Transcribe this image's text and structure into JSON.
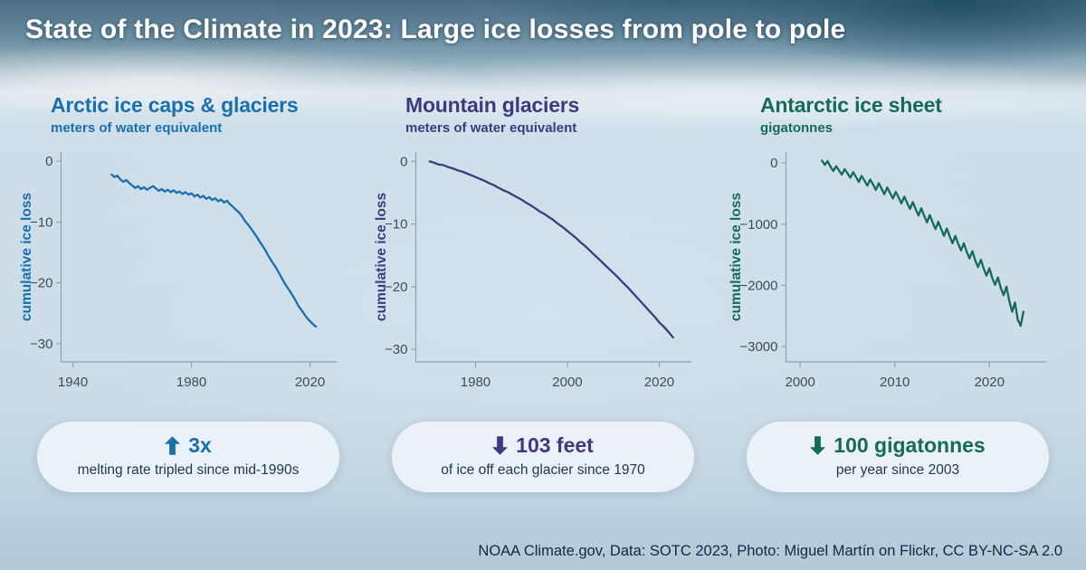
{
  "title": "State of the Climate in 2023: Large ice losses from pole to pole",
  "footer": "NOAA Climate.gov, Data: SOTC 2023, Photo: Miguel Martín on Flickr, CC BY-NC-SA 2.0",
  "panels": [
    {
      "heading": "Arctic ice caps & glaciers",
      "subheading": "meters of water equivalent",
      "accent": "#1a6fae",
      "stat": {
        "direction": "up",
        "value": "3x",
        "caption": "melting rate tripled since mid-1990s"
      }
    },
    {
      "heading": "Mountain glaciers",
      "subheading": "meters of water equivalent",
      "accent": "#3e3a7e",
      "stat": {
        "direction": "down",
        "value": "103 feet",
        "caption": "of ice off each glacier since 1970"
      }
    },
    {
      "heading": "Antarctic ice sheet",
      "subheading": "gigatonnes",
      "accent": "#166a58",
      "stat": {
        "direction": "down",
        "value": "100 gigatonnes",
        "caption": "per year since 2003"
      }
    }
  ],
  "chart_data": [
    {
      "type": "line",
      "title": "Arctic ice caps & glaciers",
      "units": "meters of water equivalent",
      "ylabel": "cumulative ice loss",
      "legend": "none",
      "grid": false,
      "x_domain": [
        1936,
        2029
      ],
      "y_domain": [
        1.5,
        -33
      ],
      "x_ticks": [
        1940,
        1980,
        2020
      ],
      "y_ticks": [
        0,
        -10,
        -20,
        -30
      ],
      "x": [
        1953,
        1954,
        1955,
        1956,
        1957,
        1958,
        1959,
        1960,
        1961,
        1962,
        1963,
        1964,
        1965,
        1966,
        1967,
        1968,
        1969,
        1970,
        1971,
        1972,
        1973,
        1974,
        1975,
        1976,
        1977,
        1978,
        1979,
        1980,
        1981,
        1982,
        1983,
        1984,
        1985,
        1986,
        1987,
        1988,
        1989,
        1990,
        1991,
        1992,
        1993,
        1994,
        1995,
        1996,
        1997,
        1998,
        1999,
        2000,
        2001,
        2002,
        2003,
        2004,
        2005,
        2006,
        2007,
        2008,
        2009,
        2010,
        2011,
        2012,
        2013,
        2014,
        2015,
        2016,
        2017,
        2018,
        2019,
        2020,
        2021,
        2022
      ],
      "y": [
        -2.2,
        -2.6,
        -2.4,
        -3.0,
        -3.4,
        -3.1,
        -3.6,
        -4.0,
        -4.4,
        -4.1,
        -4.6,
        -4.3,
        -4.7,
        -4.4,
        -4.1,
        -4.5,
        -4.9,
        -4.6,
        -5.0,
        -4.7,
        -5.1,
        -4.8,
        -5.2,
        -5.0,
        -5.4,
        -5.1,
        -5.5,
        -5.3,
        -5.8,
        -5.5,
        -6.0,
        -5.7,
        -6.2,
        -5.9,
        -6.4,
        -6.1,
        -6.6,
        -6.3,
        -6.8,
        -6.5,
        -7.1,
        -7.5,
        -8.0,
        -8.4,
        -9.0,
        -9.8,
        -10.4,
        -11.0,
        -11.7,
        -12.4,
        -13.2,
        -13.9,
        -14.7,
        -15.6,
        -16.4,
        -17.1,
        -17.9,
        -18.8,
        -19.7,
        -20.5,
        -21.2,
        -22.0,
        -22.8,
        -23.7,
        -24.4,
        -25.1,
        -25.8,
        -26.3,
        -26.8,
        -27.2
      ]
    },
    {
      "type": "line",
      "title": "Mountain glaciers",
      "units": "meters of water equivalent",
      "ylabel": "cumulative ice loss",
      "legend": "none",
      "grid": false,
      "x_domain": [
        1967,
        2027
      ],
      "y_domain": [
        1.5,
        -32
      ],
      "x_ticks": [
        1980,
        2000,
        2020
      ],
      "y_ticks": [
        0,
        -10,
        -20,
        -30
      ],
      "x": [
        1970,
        1971,
        1972,
        1973,
        1974,
        1975,
        1976,
        1977,
        1978,
        1979,
        1980,
        1981,
        1982,
        1983,
        1984,
        1985,
        1986,
        1987,
        1988,
        1989,
        1990,
        1991,
        1992,
        1993,
        1994,
        1995,
        1996,
        1997,
        1998,
        1999,
        2000,
        2001,
        2002,
        2003,
        2004,
        2005,
        2006,
        2007,
        2008,
        2009,
        2010,
        2011,
        2012,
        2013,
        2014,
        2015,
        2016,
        2017,
        2018,
        2019,
        2020,
        2021,
        2022,
        2023
      ],
      "y": [
        0,
        -0.2,
        -0.5,
        -0.6,
        -0.9,
        -1.1,
        -1.4,
        -1.6,
        -1.9,
        -2.2,
        -2.5,
        -2.8,
        -3.1,
        -3.5,
        -3.8,
        -4.2,
        -4.6,
        -4.9,
        -5.3,
        -5.7,
        -6.1,
        -6.6,
        -7.0,
        -7.5,
        -8.0,
        -8.4,
        -8.9,
        -9.4,
        -10.0,
        -10.5,
        -11.1,
        -11.7,
        -12.3,
        -13.0,
        -13.6,
        -14.3,
        -15.0,
        -15.7,
        -16.4,
        -17.1,
        -17.8,
        -18.5,
        -19.3,
        -20.0,
        -20.8,
        -21.6,
        -22.4,
        -23.2,
        -24.0,
        -24.8,
        -25.7,
        -26.4,
        -27.2,
        -28.1
      ]
    },
    {
      "type": "line",
      "title": "Antarctic ice sheet",
      "units": "gigatonnes",
      "ylabel": "cumulative ice loss",
      "legend": "none",
      "grid": false,
      "x_domain": [
        1998.5,
        2026
      ],
      "y_domain": [
        180,
        -3250
      ],
      "x_ticks": [
        2000,
        2010,
        2020
      ],
      "y_ticks": [
        0,
        -1000,
        -2000,
        -3000
      ],
      "x": [
        2002.3,
        2002.6,
        2002.9,
        2003.2,
        2003.5,
        2003.8,
        2004.1,
        2004.4,
        2004.7,
        2005,
        2005.3,
        2005.6,
        2005.9,
        2006.2,
        2006.5,
        2006.8,
        2007.1,
        2007.4,
        2007.7,
        2008,
        2008.3,
        2008.6,
        2008.9,
        2009.2,
        2009.5,
        2009.8,
        2010.1,
        2010.4,
        2010.7,
        2011,
        2011.3,
        2011.6,
        2011.9,
        2012.2,
        2012.5,
        2012.8,
        2013.1,
        2013.4,
        2013.7,
        2014,
        2014.3,
        2014.6,
        2014.9,
        2015.2,
        2015.5,
        2015.8,
        2016.1,
        2016.4,
        2016.7,
        2017,
        2017.3,
        2017.6,
        2017.9,
        2018.2,
        2018.5,
        2018.8,
        2019.1,
        2019.4,
        2019.7,
        2020,
        2020.3,
        2020.6,
        2020.9,
        2021.2,
        2021.5,
        2021.8,
        2022.1,
        2022.4,
        2022.7,
        2023,
        2023.3,
        2023.6
      ],
      "y": [
        40,
        -30,
        30,
        -60,
        -130,
        -50,
        -120,
        -190,
        -100,
        -170,
        -240,
        -150,
        -230,
        -310,
        -210,
        -290,
        -370,
        -270,
        -350,
        -440,
        -330,
        -420,
        -510,
        -400,
        -490,
        -580,
        -470,
        -560,
        -660,
        -550,
        -650,
        -750,
        -640,
        -750,
        -860,
        -740,
        -860,
        -970,
        -850,
        -970,
        -1080,
        -960,
        -1080,
        -1190,
        -1070,
        -1200,
        -1310,
        -1190,
        -1320,
        -1430,
        -1310,
        -1450,
        -1560,
        -1440,
        -1590,
        -1700,
        -1580,
        -1730,
        -1840,
        -1720,
        -1880,
        -1990,
        -1870,
        -2040,
        -2160,
        -2020,
        -2250,
        -2430,
        -2280,
        -2560,
        -2660,
        -2430
      ]
    }
  ]
}
